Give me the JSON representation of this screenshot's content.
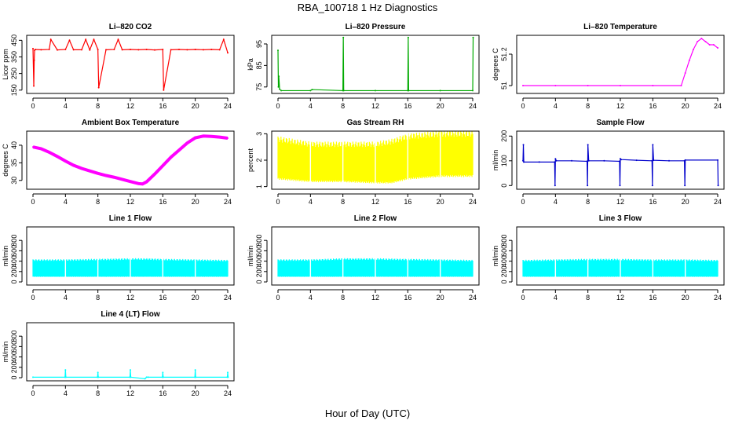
{
  "figure": {
    "title": "RBA_100718  1 Hz Diagnostics",
    "xlabel": "Hour of Day (UTC)"
  },
  "chart_data": [
    {
      "type": "line",
      "title": "Li–820 CO2",
      "ylabel": "Licor ppm",
      "color": "#ff0000",
      "xlim": [
        0,
        24
      ],
      "ylim": [
        130,
        480
      ],
      "xticks": [
        0,
        4,
        8,
        12,
        16,
        20,
        24
      ],
      "yticks": [
        150,
        250,
        350,
        450
      ],
      "x": [
        0,
        0.1,
        0.15,
        0.2,
        0.3,
        1,
        2,
        2.2,
        3,
        4,
        4.5,
        5,
        6,
        6.5,
        7,
        7.5,
        8,
        8.1,
        9,
        10,
        10.5,
        11,
        12,
        13,
        14,
        15,
        16,
        16.1,
        17,
        18,
        19,
        20,
        21,
        22,
        23,
        23.5,
        24
      ],
      "y": [
        400,
        175,
        330,
        390,
        395,
        393,
        395,
        455,
        392,
        395,
        450,
        393,
        393,
        455,
        392,
        455,
        395,
        165,
        393,
        395,
        455,
        393,
        395,
        393,
        395,
        392,
        395,
        150,
        393,
        395,
        393,
        395,
        393,
        395,
        393,
        455,
        375
      ]
    },
    {
      "type": "line",
      "title": "Li–820 Pressure",
      "ylabel": "kPa",
      "color": "#00aa00",
      "xlim": [
        0,
        24
      ],
      "ylim": [
        72,
        99
      ],
      "xticks": [
        0,
        4,
        8,
        12,
        16,
        20,
        24
      ],
      "yticks": [
        75,
        85,
        95
      ],
      "x": [
        0,
        0.05,
        0.1,
        0.2,
        0.4,
        4,
        4.2,
        8,
        8.05,
        8.1,
        12,
        16,
        16.05,
        16.1,
        20,
        24,
        24.05
      ],
      "y": [
        92,
        75,
        80,
        74,
        73.3,
        73.3,
        73.8,
        73.3,
        98,
        73.3,
        73.3,
        73.3,
        98,
        73.3,
        73.3,
        73.3,
        98
      ]
    },
    {
      "type": "line",
      "title": "Li–820 Temperature",
      "ylabel": "degrees C",
      "color": "#ff00ff",
      "xlim": [
        0,
        24
      ],
      "ylim": [
        50.95,
        51.32
      ],
      "xticks": [
        0,
        4,
        8,
        12,
        16,
        20,
        24
      ],
      "yticks": [
        51.0,
        51.2
      ],
      "x": [
        0,
        4,
        8,
        12,
        16,
        19.5,
        20,
        20.5,
        21,
        21.5,
        22,
        22.5,
        23,
        23.5,
        24
      ],
      "y": [
        51.0,
        51.0,
        51.0,
        51.0,
        51.0,
        51.0,
        51.08,
        51.16,
        51.23,
        51.28,
        51.3,
        51.28,
        51.26,
        51.26,
        51.24
      ]
    },
    {
      "type": "line",
      "title": "Ambient Box Temperature",
      "ylabel": "degrees C",
      "color": "#ff00ff",
      "xlim": [
        0,
        24
      ],
      "ylim": [
        27.5,
        44
      ],
      "xticks": [
        0,
        4,
        8,
        12,
        16,
        20,
        24
      ],
      "yticks": [
        30,
        35,
        40
      ],
      "x": [
        0,
        1,
        2,
        3,
        4,
        5,
        6,
        7,
        8,
        9,
        10,
        11,
        12,
        13,
        13.5,
        14,
        15,
        16,
        17,
        18,
        19,
        20,
        21,
        22,
        23,
        24
      ],
      "y": [
        39.5,
        39,
        38,
        36.8,
        35.5,
        34.3,
        33.4,
        32.7,
        32,
        31.4,
        30.9,
        30.3,
        29.7,
        29.1,
        29,
        29.6,
        31.8,
        34.2,
        36.6,
        38.6,
        40.6,
        42.1,
        42.6,
        42.5,
        42.3,
        42
      ]
    },
    {
      "type": "area",
      "title": "Gas Stream RH",
      "ylabel": "percent",
      "color": "#ffff00",
      "xlim": [
        0,
        24
      ],
      "ylim": [
        0.9,
        3.1
      ],
      "xticks": [
        0,
        4,
        8,
        12,
        16,
        20,
        24
      ],
      "yticks": [
        1.0,
        2.0,
        3.0
      ],
      "x": [
        0,
        4,
        8,
        12,
        14,
        16,
        20,
        24
      ],
      "ymin": [
        1.3,
        1.2,
        1.2,
        1.15,
        1.15,
        1.3,
        1.4,
        1.4
      ],
      "ymax": [
        2.8,
        2.6,
        2.6,
        2.6,
        2.7,
        2.9,
        3.0,
        3.0
      ]
    },
    {
      "type": "line",
      "title": "Sample Flow",
      "ylabel": "ml/min",
      "color": "#0000cc",
      "xlim": [
        0,
        24
      ],
      "ylim": [
        -15,
        220
      ],
      "xticks": [
        0,
        4,
        8,
        12,
        16,
        20,
        24
      ],
      "yticks": [
        0,
        100,
        200
      ],
      "x": [
        0,
        0.05,
        0.1,
        2,
        3.9,
        3.95,
        4,
        4.1,
        6,
        7.9,
        7.95,
        8,
        8.1,
        10,
        11.9,
        11.95,
        12,
        12.1,
        14,
        15.9,
        15.95,
        16,
        16.1,
        18,
        19.9,
        19.95,
        20,
        24,
        24.05
      ],
      "y": [
        100,
        165,
        95,
        95,
        95,
        0,
        108,
        100,
        100,
        98,
        0,
        165,
        100,
        100,
        98,
        0,
        108,
        105,
        102,
        100,
        0,
        165,
        102,
        100,
        100,
        0,
        103,
        103,
        0
      ]
    },
    {
      "type": "area",
      "title": "Line 1 Flow",
      "ylabel": "ml/min",
      "color": "#00ffff",
      "xlim": [
        0,
        24
      ],
      "ylim": [
        -60,
        1060
      ],
      "xticks": [
        0,
        4,
        8,
        12,
        16,
        20,
        24
      ],
      "yticks": [
        0,
        200,
        400,
        600,
        800
      ],
      "x": [
        0,
        4,
        8,
        12,
        14,
        16,
        20,
        24
      ],
      "ymin": [
        100,
        100,
        100,
        100,
        100,
        100,
        100,
        100
      ],
      "ymax": [
        420,
        420,
        430,
        440,
        440,
        430,
        420,
        410
      ]
    },
    {
      "type": "area",
      "title": "Line 2 Flow",
      "ylabel": "ml/min",
      "color": "#00ffff",
      "xlim": [
        0,
        24
      ],
      "ylim": [
        -60,
        1060
      ],
      "xticks": [
        0,
        4,
        8,
        12,
        16,
        20,
        24
      ],
      "yticks": [
        0,
        200,
        400,
        600,
        800
      ],
      "x": [
        0,
        4,
        8,
        12,
        16,
        20,
        24
      ],
      "ymin": [
        100,
        100,
        100,
        100,
        100,
        100,
        100
      ],
      "ymax": [
        420,
        420,
        440,
        440,
        430,
        420,
        410
      ]
    },
    {
      "type": "area",
      "title": "Line 3 Flow",
      "ylabel": "ml/min",
      "color": "#00ffff",
      "xlim": [
        0,
        24
      ],
      "ylim": [
        -60,
        1060
      ],
      "xticks": [
        0,
        4,
        8,
        12,
        16,
        20,
        24
      ],
      "yticks": [
        0,
        200,
        400,
        600,
        800
      ],
      "x": [
        0,
        4,
        8,
        12,
        16,
        20,
        24
      ],
      "ymin": [
        100,
        100,
        100,
        100,
        100,
        100,
        100
      ],
      "ymax": [
        410,
        420,
        430,
        430,
        420,
        420,
        410
      ]
    },
    {
      "type": "line",
      "title": "Line 4 (LT) Flow",
      "ylabel": "ml/min",
      "color": "#00ffff",
      "xlim": [
        0,
        24
      ],
      "ylim": [
        -60,
        1060
      ],
      "xticks": [
        0,
        4,
        8,
        12,
        16,
        20,
        24
      ],
      "yticks": [
        0,
        200,
        400,
        600,
        800
      ],
      "x": [
        0,
        3.95,
        4,
        4.05,
        7.95,
        8,
        8.05,
        11.95,
        12,
        12.05,
        13.8,
        14,
        14.2,
        15.95,
        16,
        16.05,
        19.95,
        20,
        20.05,
        23.95,
        24,
        24.05
      ],
      "y": [
        10,
        10,
        150,
        10,
        10,
        100,
        10,
        10,
        150,
        10,
        -20,
        10,
        10,
        10,
        100,
        10,
        10,
        150,
        10,
        10,
        100,
        10
      ]
    }
  ]
}
